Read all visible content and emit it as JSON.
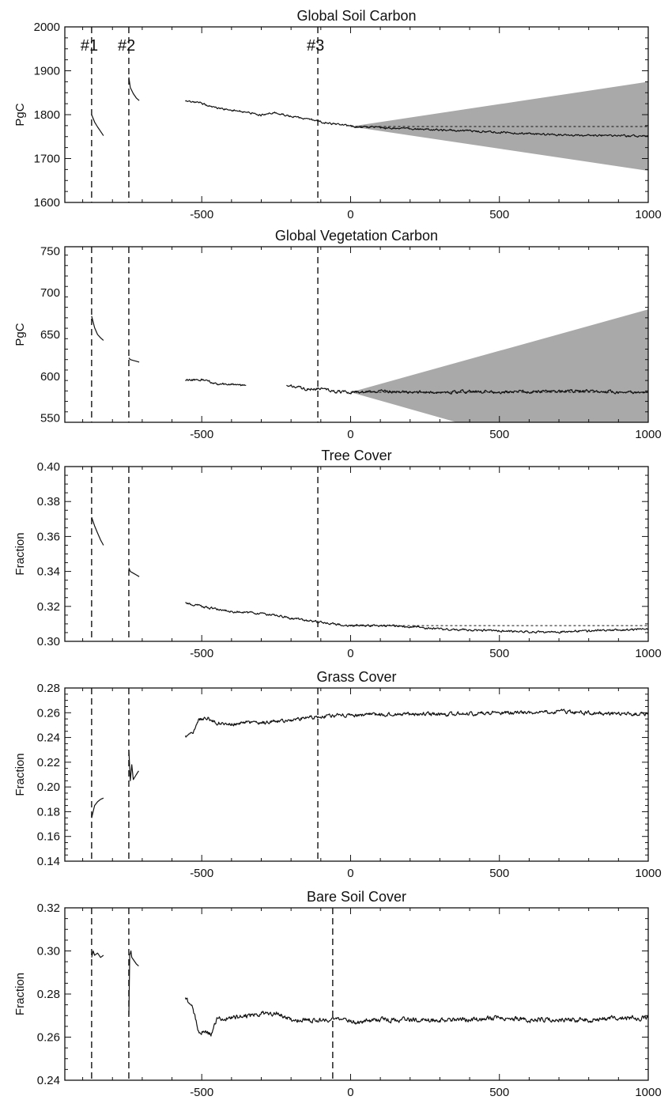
{
  "chart_data": [
    {
      "type": "line",
      "title": "Global Soil Carbon",
      "xlabel": "",
      "ylabel": "PgC",
      "xlim": [
        -960,
        1000
      ],
      "ylim": [
        1600,
        2000
      ],
      "xticks": [
        -500,
        0,
        500,
        1000
      ],
      "yticks": [
        1600,
        1700,
        1800,
        1900,
        2000
      ],
      "ytick_format": 0,
      "grid": false,
      "legend": "none",
      "vlines": [
        {
          "x": -870,
          "label": "#1"
        },
        {
          "x": -745,
          "label": "#2"
        },
        {
          "x": -110,
          "label": "#3"
        }
      ],
      "band": {
        "x": [
          0,
          1000
        ],
        "lower": [
          1773,
          1672
        ],
        "upper": [
          1773,
          1875
        ],
        "color": "#a9a9a9"
      },
      "reference": {
        "x": [
          0,
          1000
        ],
        "y": [
          1773,
          1773
        ]
      },
      "series": [
        {
          "x": [
            -870,
            -860,
            -850,
            -840,
            -830
          ],
          "y": [
            1800,
            1783,
            1772,
            1762,
            1752
          ]
        },
        {
          "x": [
            -745,
            -740,
            -730,
            -720,
            -710
          ],
          "y": [
            1885,
            1862,
            1848,
            1838,
            1832
          ]
        },
        {
          "x": [
            -555,
            -500,
            -450,
            -400,
            -350,
            -300,
            -250,
            -200,
            -150,
            -100,
            -50,
            0,
            100,
            200,
            300,
            400,
            500,
            600,
            700,
            800,
            900,
            1000
          ],
          "y": [
            1830,
            1826,
            1815,
            1811,
            1806,
            1799,
            1804,
            1796,
            1790,
            1784,
            1778,
            1773,
            1771,
            1768,
            1765,
            1763,
            1760,
            1756,
            1754,
            1753,
            1752,
            1751
          ],
          "noise": 1.8
        }
      ]
    },
    {
      "type": "line",
      "title": "Global Vegetation Carbon",
      "xlabel": "",
      "ylabel": "PgC",
      "xlim": [
        -960,
        1000
      ],
      "ylim": [
        545,
        755
      ],
      "xticks": [
        -500,
        0,
        500,
        1000
      ],
      "yticks": [
        550,
        600,
        650,
        700,
        750
      ],
      "ytick_format": 0,
      "grid": false,
      "legend": "none",
      "vlines": [
        {
          "x": -870,
          "label": ""
        },
        {
          "x": -745,
          "label": ""
        },
        {
          "x": -110,
          "label": ""
        }
      ],
      "band": {
        "x": [
          0,
          1000
        ],
        "lower": [
          581,
          480
        ],
        "upper": [
          581,
          680
        ],
        "color": "#a9a9a9"
      },
      "reference": {
        "x": [
          0,
          1000
        ],
        "y": [
          581,
          581
        ]
      },
      "series": [
        {
          "x": [
            -870,
            -860,
            -850,
            -840,
            -830
          ],
          "y": [
            672,
            658,
            650,
            646,
            643
          ]
        },
        {
          "x": [
            -745,
            -740,
            -730,
            -720,
            -710
          ],
          "y": [
            622,
            620,
            619,
            618,
            617
          ]
        },
        {
          "x": [
            -555,
            -500,
            -450,
            -400,
            -350
          ],
          "y": [
            595,
            596,
            591,
            590,
            589
          ],
          "noise": 1.2
        },
        {
          "x": [
            -215,
            -150,
            -100,
            -50,
            0,
            100,
            200,
            300,
            400,
            500,
            600,
            700,
            800,
            900,
            1000
          ],
          "y": [
            589,
            585,
            585,
            582,
            581,
            582,
            581,
            581,
            582,
            581,
            582,
            582,
            583,
            581,
            581
          ],
          "noise": 1.4
        }
      ]
    },
    {
      "type": "line",
      "title": "Tree Cover",
      "xlabel": "",
      "ylabel": "Fraction",
      "xlim": [
        -960,
        1000
      ],
      "ylim": [
        0.3,
        0.4
      ],
      "xticks": [
        -500,
        0,
        500,
        1000
      ],
      "yticks": [
        0.3,
        0.32,
        0.34,
        0.36,
        0.38,
        0.4
      ],
      "ytick_format": 2,
      "grid": false,
      "legend": "none",
      "vlines": [
        {
          "x": -870,
          "label": ""
        },
        {
          "x": -745,
          "label": ""
        },
        {
          "x": -110,
          "label": ""
        }
      ],
      "band": null,
      "reference": {
        "x": [
          0,
          1000
        ],
        "y": [
          0.309,
          0.309
        ]
      },
      "series": [
        {
          "x": [
            -870,
            -860,
            -850,
            -840,
            -830
          ],
          "y": [
            0.371,
            0.366,
            0.362,
            0.358,
            0.355
          ]
        },
        {
          "x": [
            -745,
            -740,
            -730,
            -720,
            -710
          ],
          "y": [
            0.342,
            0.34,
            0.339,
            0.338,
            0.337
          ]
        },
        {
          "x": [
            -555,
            -500,
            -400,
            -300,
            -250,
            -200,
            -150,
            -100,
            -50,
            0,
            100,
            200,
            300,
            400,
            500,
            600,
            700,
            800,
            900,
            1000
          ],
          "y": [
            0.322,
            0.32,
            0.317,
            0.316,
            0.315,
            0.313,
            0.312,
            0.311,
            0.31,
            0.309,
            0.309,
            0.3085,
            0.307,
            0.3065,
            0.306,
            0.3055,
            0.3055,
            0.306,
            0.3065,
            0.307
          ],
          "noise": 0.0005
        }
      ]
    },
    {
      "type": "line",
      "title": "Grass Cover",
      "xlabel": "",
      "ylabel": "Fraction",
      "xlim": [
        -960,
        1000
      ],
      "ylim": [
        0.14,
        0.28
      ],
      "xticks": [
        -500,
        0,
        500,
        1000
      ],
      "yticks": [
        0.14,
        0.16,
        0.18,
        0.2,
        0.22,
        0.24,
        0.26,
        0.28
      ],
      "ytick_format": 2,
      "grid": false,
      "legend": "none",
      "vlines": [
        {
          "x": -870,
          "label": ""
        },
        {
          "x": -745,
          "label": ""
        },
        {
          "x": -110,
          "label": ""
        }
      ],
      "band": null,
      "reference": null,
      "series": [
        {
          "x": [
            -870,
            -865,
            -860,
            -850,
            -840,
            -830
          ],
          "y": [
            0.175,
            0.18,
            0.185,
            0.188,
            0.19,
            0.191
          ]
        },
        {
          "x": [
            -745,
            -740,
            -735,
            -730,
            -720,
            -712
          ],
          "y": [
            0.23,
            0.205,
            0.218,
            0.206,
            0.21,
            0.213
          ]
        },
        {
          "x": [
            -555,
            -530,
            -510,
            -480,
            -450,
            -400,
            -350,
            -300,
            -250,
            -200,
            -150,
            -100,
            -50,
            0,
            100,
            200,
            300,
            400,
            500,
            600,
            700,
            800,
            900,
            1000
          ],
          "y": [
            0.241,
            0.243,
            0.255,
            0.256,
            0.252,
            0.251,
            0.252,
            0.252,
            0.253,
            0.254,
            0.256,
            0.257,
            0.258,
            0.258,
            0.259,
            0.259,
            0.259,
            0.259,
            0.26,
            0.26,
            0.261,
            0.26,
            0.259,
            0.259
          ],
          "noise": 0.0012
        }
      ]
    },
    {
      "type": "line",
      "title": "Bare Soil Cover",
      "xlabel": "",
      "ylabel": "Fraction",
      "xlim": [
        -960,
        1000
      ],
      "ylim": [
        0.24,
        0.32
      ],
      "xticks": [
        -500,
        0,
        500,
        1000
      ],
      "yticks": [
        0.24,
        0.26,
        0.28,
        0.3,
        0.32
      ],
      "ytick_format": 2,
      "grid": false,
      "legend": "none",
      "vlines": [
        {
          "x": -870,
          "label": ""
        },
        {
          "x": -745,
          "label": ""
        },
        {
          "x": -60,
          "label": ""
        }
      ],
      "band": null,
      "reference": null,
      "series": [
        {
          "x": [
            -870,
            -865,
            -860,
            -850,
            -840,
            -830
          ],
          "y": [
            0.297,
            0.3,
            0.298,
            0.299,
            0.297,
            0.298
          ]
        },
        {
          "x": [
            -745,
            -742,
            -738,
            -735,
            -730,
            -720,
            -712
          ],
          "y": [
            0.27,
            0.298,
            0.3,
            0.297,
            0.296,
            0.294,
            0.293
          ]
        },
        {
          "x": [
            -555,
            -530,
            -510,
            -490,
            -470,
            -450,
            -400,
            -350,
            -300,
            -250,
            -200,
            -150,
            -100,
            -50,
            0,
            100,
            200,
            300,
            400,
            500,
            600,
            700,
            800,
            900,
            1000
          ],
          "y": [
            0.278,
            0.273,
            0.263,
            0.262,
            0.261,
            0.268,
            0.269,
            0.27,
            0.271,
            0.271,
            0.268,
            0.268,
            0.268,
            0.268,
            0.267,
            0.268,
            0.268,
            0.268,
            0.268,
            0.269,
            0.268,
            0.268,
            0.268,
            0.269,
            0.269
          ],
          "noise": 0.0009
        }
      ]
    }
  ]
}
